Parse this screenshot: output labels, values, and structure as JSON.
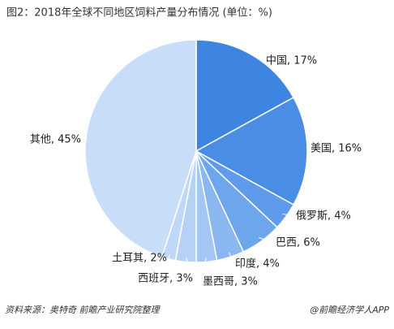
{
  "chart_data": {
    "type": "pie",
    "title": "图2：2018年全球不同地区饲料产量分布情况 (单位：%)",
    "values": [
      17,
      16,
      4,
      6,
      4,
      3,
      3,
      2,
      45
    ],
    "value_labels": [
      "中国, 17%",
      "美国, 16%",
      "俄罗斯, 4%",
      "巴西, 6%",
      "印度, 4%",
      "墨西哥, 3%",
      "西班牙, 3%",
      "土耳其, 2%",
      "其他, 45%"
    ],
    "colors": [
      "#3d85e0",
      "#4a8de5",
      "#5f9bea",
      "#6ea6ed",
      "#8ab7f0",
      "#a3c6f3",
      "#b5d1f5",
      "#bfd8f7",
      "#c8ddf8"
    ],
    "source": "资料来源：奥特奇 前瞻产业研究院整理",
    "footer": "@前瞻经济学人APP"
  }
}
